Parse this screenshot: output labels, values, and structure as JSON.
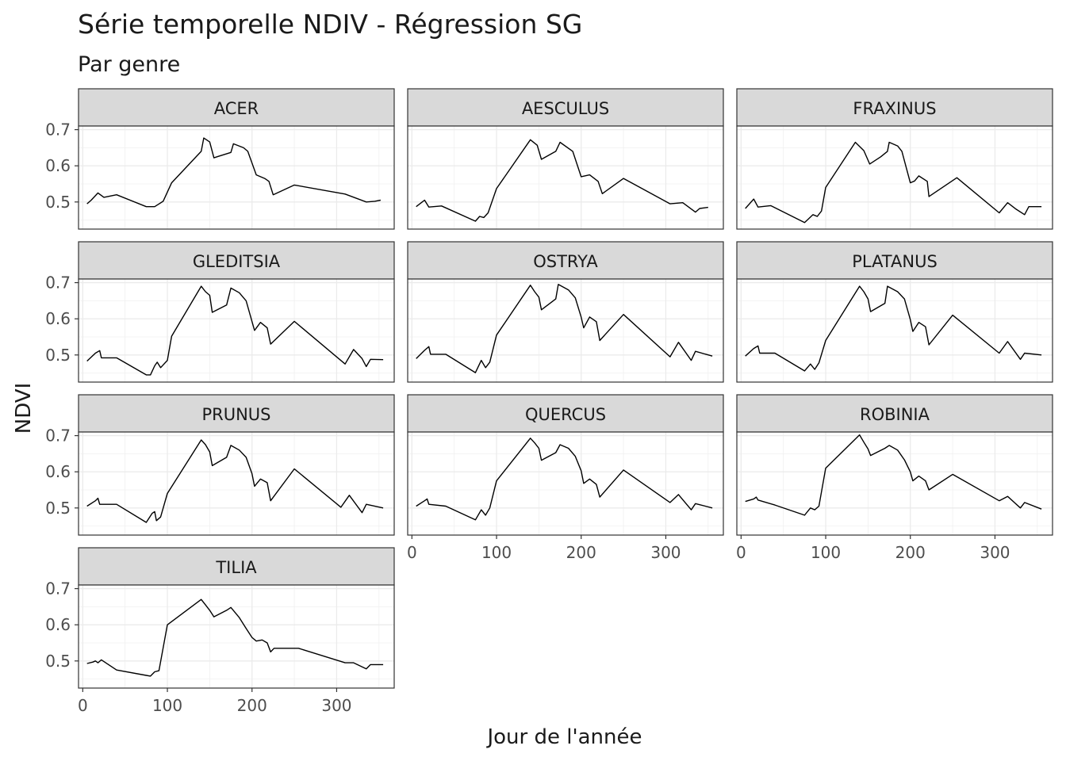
{
  "chart_data": {
    "type": "line",
    "title": "Série temporelle NDIV - Régression SG",
    "subtitle": "Par genre",
    "xlabel": "Jour de l'année",
    "ylabel": "NDVI",
    "xlim": [
      -5,
      368
    ],
    "ylim": [
      0.425,
      0.71
    ],
    "x_ticks": [
      0,
      100,
      200,
      300
    ],
    "y_ticks": [
      0.5,
      0.6,
      0.7
    ],
    "grid": true,
    "line_color": "#000000",
    "facets": [
      {
        "name": "ACER",
        "points": [
          [
            5,
            0.495
          ],
          [
            10,
            0.505
          ],
          [
            18,
            0.525
          ],
          [
            25,
            0.513
          ],
          [
            40,
            0.52
          ],
          [
            75,
            0.487
          ],
          [
            85,
            0.487
          ],
          [
            95,
            0.502
          ],
          [
            105,
            0.553
          ],
          [
            140,
            0.64
          ],
          [
            143,
            0.677
          ],
          [
            150,
            0.666
          ],
          [
            155,
            0.622
          ],
          [
            160,
            0.626
          ],
          [
            175,
            0.637
          ],
          [
            178,
            0.661
          ],
          [
            190,
            0.65
          ],
          [
            195,
            0.64
          ],
          [
            205,
            0.575
          ],
          [
            215,
            0.565
          ],
          [
            220,
            0.557
          ],
          [
            225,
            0.52
          ],
          [
            250,
            0.547
          ],
          [
            310,
            0.522
          ],
          [
            335,
            0.5
          ],
          [
            345,
            0.502
          ],
          [
            352,
            0.505
          ]
        ]
      },
      {
        "name": "AESCULUS",
        "points": [
          [
            5,
            0.487
          ],
          [
            15,
            0.505
          ],
          [
            20,
            0.486
          ],
          [
            35,
            0.489
          ],
          [
            75,
            0.447
          ],
          [
            80,
            0.46
          ],
          [
            85,
            0.457
          ],
          [
            90,
            0.47
          ],
          [
            100,
            0.537
          ],
          [
            140,
            0.672
          ],
          [
            148,
            0.657
          ],
          [
            153,
            0.618
          ],
          [
            170,
            0.64
          ],
          [
            175,
            0.665
          ],
          [
            190,
            0.64
          ],
          [
            200,
            0.57
          ],
          [
            210,
            0.575
          ],
          [
            220,
            0.557
          ],
          [
            225,
            0.523
          ],
          [
            250,
            0.565
          ],
          [
            305,
            0.495
          ],
          [
            320,
            0.498
          ],
          [
            335,
            0.472
          ],
          [
            340,
            0.482
          ],
          [
            350,
            0.485
          ]
        ]
      },
      {
        "name": "FRAXINUS",
        "points": [
          [
            5,
            0.482
          ],
          [
            15,
            0.508
          ],
          [
            20,
            0.486
          ],
          [
            35,
            0.49
          ],
          [
            75,
            0.443
          ],
          [
            85,
            0.465
          ],
          [
            90,
            0.46
          ],
          [
            95,
            0.475
          ],
          [
            100,
            0.54
          ],
          [
            135,
            0.665
          ],
          [
            145,
            0.642
          ],
          [
            152,
            0.605
          ],
          [
            165,
            0.625
          ],
          [
            173,
            0.64
          ],
          [
            175,
            0.665
          ],
          [
            185,
            0.655
          ],
          [
            190,
            0.64
          ],
          [
            200,
            0.553
          ],
          [
            205,
            0.558
          ],
          [
            210,
            0.572
          ],
          [
            220,
            0.557
          ],
          [
            222,
            0.515
          ],
          [
            255,
            0.567
          ],
          [
            305,
            0.47
          ],
          [
            315,
            0.498
          ],
          [
            325,
            0.48
          ],
          [
            335,
            0.465
          ],
          [
            340,
            0.487
          ],
          [
            355,
            0.487
          ]
        ]
      },
      {
        "name": "GLEDITSIA",
        "points": [
          [
            5,
            0.483
          ],
          [
            15,
            0.505
          ],
          [
            20,
            0.512
          ],
          [
            22,
            0.492
          ],
          [
            40,
            0.492
          ],
          [
            75,
            0.445
          ],
          [
            80,
            0.445
          ],
          [
            85,
            0.47
          ],
          [
            88,
            0.48
          ],
          [
            92,
            0.465
          ],
          [
            100,
            0.485
          ],
          [
            105,
            0.552
          ],
          [
            140,
            0.69
          ],
          [
            145,
            0.675
          ],
          [
            150,
            0.665
          ],
          [
            153,
            0.618
          ],
          [
            170,
            0.638
          ],
          [
            175,
            0.685
          ],
          [
            185,
            0.672
          ],
          [
            193,
            0.65
          ],
          [
            203,
            0.568
          ],
          [
            210,
            0.59
          ],
          [
            218,
            0.575
          ],
          [
            222,
            0.53
          ],
          [
            250,
            0.593
          ],
          [
            310,
            0.475
          ],
          [
            320,
            0.515
          ],
          [
            330,
            0.49
          ],
          [
            335,
            0.468
          ],
          [
            340,
            0.488
          ],
          [
            355,
            0.487
          ]
        ]
      },
      {
        "name": "OSTRYA",
        "points": [
          [
            5,
            0.49
          ],
          [
            15,
            0.513
          ],
          [
            20,
            0.523
          ],
          [
            22,
            0.502
          ],
          [
            40,
            0.502
          ],
          [
            75,
            0.451
          ],
          [
            82,
            0.485
          ],
          [
            87,
            0.465
          ],
          [
            92,
            0.48
          ],
          [
            100,
            0.555
          ],
          [
            140,
            0.693
          ],
          [
            145,
            0.675
          ],
          [
            150,
            0.66
          ],
          [
            153,
            0.625
          ],
          [
            170,
            0.655
          ],
          [
            173,
            0.695
          ],
          [
            185,
            0.68
          ],
          [
            193,
            0.658
          ],
          [
            200,
            0.605
          ],
          [
            203,
            0.575
          ],
          [
            210,
            0.605
          ],
          [
            218,
            0.592
          ],
          [
            222,
            0.54
          ],
          [
            250,
            0.612
          ],
          [
            305,
            0.495
          ],
          [
            315,
            0.535
          ],
          [
            330,
            0.485
          ],
          [
            335,
            0.51
          ],
          [
            355,
            0.497
          ]
        ]
      },
      {
        "name": "PLATANUS",
        "points": [
          [
            5,
            0.497
          ],
          [
            15,
            0.518
          ],
          [
            20,
            0.525
          ],
          [
            22,
            0.505
          ],
          [
            40,
            0.505
          ],
          [
            75,
            0.456
          ],
          [
            82,
            0.475
          ],
          [
            87,
            0.46
          ],
          [
            92,
            0.478
          ],
          [
            100,
            0.54
          ],
          [
            140,
            0.69
          ],
          [
            145,
            0.675
          ],
          [
            150,
            0.655
          ],
          [
            153,
            0.62
          ],
          [
            170,
            0.643
          ],
          [
            173,
            0.69
          ],
          [
            185,
            0.675
          ],
          [
            193,
            0.655
          ],
          [
            200,
            0.598
          ],
          [
            203,
            0.565
          ],
          [
            210,
            0.59
          ],
          [
            218,
            0.578
          ],
          [
            222,
            0.528
          ],
          [
            250,
            0.61
          ],
          [
            305,
            0.505
          ],
          [
            315,
            0.537
          ],
          [
            330,
            0.488
          ],
          [
            335,
            0.505
          ],
          [
            355,
            0.5
          ]
        ]
      },
      {
        "name": "PRUNUS",
        "points": [
          [
            5,
            0.505
          ],
          [
            15,
            0.52
          ],
          [
            18,
            0.527
          ],
          [
            20,
            0.51
          ],
          [
            40,
            0.51
          ],
          [
            75,
            0.46
          ],
          [
            82,
            0.485
          ],
          [
            85,
            0.49
          ],
          [
            87,
            0.465
          ],
          [
            92,
            0.475
          ],
          [
            100,
            0.54
          ],
          [
            140,
            0.688
          ],
          [
            145,
            0.675
          ],
          [
            150,
            0.655
          ],
          [
            153,
            0.617
          ],
          [
            170,
            0.64
          ],
          [
            175,
            0.673
          ],
          [
            185,
            0.66
          ],
          [
            193,
            0.64
          ],
          [
            200,
            0.595
          ],
          [
            203,
            0.56
          ],
          [
            210,
            0.58
          ],
          [
            218,
            0.57
          ],
          [
            222,
            0.52
          ],
          [
            250,
            0.608
          ],
          [
            305,
            0.502
          ],
          [
            315,
            0.535
          ],
          [
            330,
            0.487
          ],
          [
            335,
            0.51
          ],
          [
            355,
            0.5
          ]
        ]
      },
      {
        "name": "QUERCUS",
        "points": [
          [
            5,
            0.505
          ],
          [
            15,
            0.52
          ],
          [
            18,
            0.525
          ],
          [
            20,
            0.51
          ],
          [
            40,
            0.505
          ],
          [
            75,
            0.467
          ],
          [
            82,
            0.495
          ],
          [
            87,
            0.48
          ],
          [
            92,
            0.5
          ],
          [
            100,
            0.575
          ],
          [
            140,
            0.693
          ],
          [
            145,
            0.68
          ],
          [
            150,
            0.665
          ],
          [
            153,
            0.632
          ],
          [
            170,
            0.653
          ],
          [
            175,
            0.675
          ],
          [
            185,
            0.665
          ],
          [
            193,
            0.643
          ],
          [
            200,
            0.603
          ],
          [
            203,
            0.568
          ],
          [
            210,
            0.58
          ],
          [
            218,
            0.565
          ],
          [
            222,
            0.53
          ],
          [
            250,
            0.605
          ],
          [
            305,
            0.515
          ],
          [
            315,
            0.537
          ],
          [
            330,
            0.495
          ],
          [
            335,
            0.512
          ],
          [
            355,
            0.5
          ]
        ]
      },
      {
        "name": "ROBINIA",
        "points": [
          [
            5,
            0.518
          ],
          [
            15,
            0.525
          ],
          [
            18,
            0.53
          ],
          [
            20,
            0.522
          ],
          [
            40,
            0.508
          ],
          [
            75,
            0.48
          ],
          [
            82,
            0.5
          ],
          [
            87,
            0.495
          ],
          [
            92,
            0.505
          ],
          [
            100,
            0.61
          ],
          [
            140,
            0.702
          ],
          [
            145,
            0.682
          ],
          [
            150,
            0.663
          ],
          [
            153,
            0.645
          ],
          [
            170,
            0.665
          ],
          [
            175,
            0.673
          ],
          [
            185,
            0.66
          ],
          [
            193,
            0.633
          ],
          [
            200,
            0.6
          ],
          [
            203,
            0.575
          ],
          [
            210,
            0.588
          ],
          [
            218,
            0.575
          ],
          [
            222,
            0.55
          ],
          [
            250,
            0.593
          ],
          [
            305,
            0.52
          ],
          [
            315,
            0.532
          ],
          [
            330,
            0.5
          ],
          [
            335,
            0.515
          ],
          [
            355,
            0.497
          ]
        ]
      },
      {
        "name": "TILIA",
        "points": [
          [
            5,
            0.493
          ],
          [
            12,
            0.497
          ],
          [
            15,
            0.5
          ],
          [
            18,
            0.495
          ],
          [
            22,
            0.503
          ],
          [
            40,
            0.475
          ],
          [
            75,
            0.46
          ],
          [
            80,
            0.458
          ],
          [
            85,
            0.47
          ],
          [
            90,
            0.473
          ],
          [
            100,
            0.6
          ],
          [
            140,
            0.67
          ],
          [
            145,
            0.655
          ],
          [
            150,
            0.64
          ],
          [
            155,
            0.622
          ],
          [
            170,
            0.64
          ],
          [
            175,
            0.648
          ],
          [
            185,
            0.62
          ],
          [
            193,
            0.59
          ],
          [
            200,
            0.565
          ],
          [
            205,
            0.555
          ],
          [
            212,
            0.558
          ],
          [
            218,
            0.55
          ],
          [
            222,
            0.525
          ],
          [
            226,
            0.535
          ],
          [
            255,
            0.535
          ],
          [
            310,
            0.495
          ],
          [
            320,
            0.495
          ],
          [
            335,
            0.478
          ],
          [
            340,
            0.49
          ],
          [
            355,
            0.49
          ]
        ]
      }
    ]
  }
}
